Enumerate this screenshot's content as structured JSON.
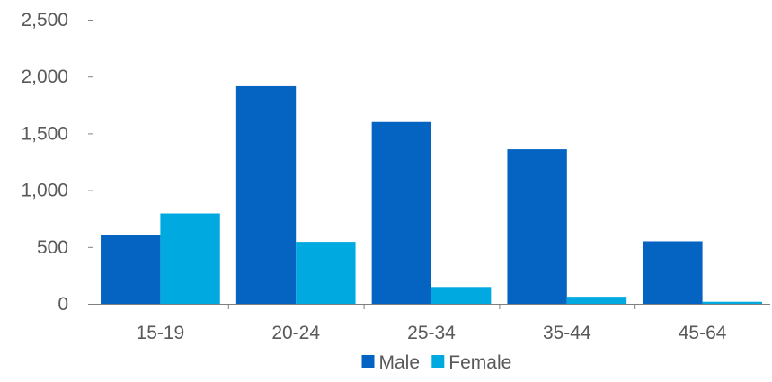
{
  "chart_data": {
    "type": "bar",
    "title": "",
    "xlabel": "",
    "ylabel": "",
    "categories": [
      "15-19",
      "20-24",
      "25-34",
      "35-44",
      "45-64"
    ],
    "series": [
      {
        "name": "Male",
        "color": "#0563C1",
        "values": [
          605,
          1915,
          1600,
          1360,
          550
        ]
      },
      {
        "name": "Female",
        "color": "#00A9E0",
        "values": [
          795,
          545,
          148,
          62,
          18
        ]
      }
    ],
    "ylim": [
      0,
      2500
    ],
    "yticks": [
      0,
      500,
      1000,
      1500,
      2000,
      2500
    ],
    "ytick_labels": [
      "0",
      "500",
      "1,000",
      "1,500",
      "2,000",
      "2,500"
    ],
    "grid": false,
    "legend_position": "bottom"
  }
}
